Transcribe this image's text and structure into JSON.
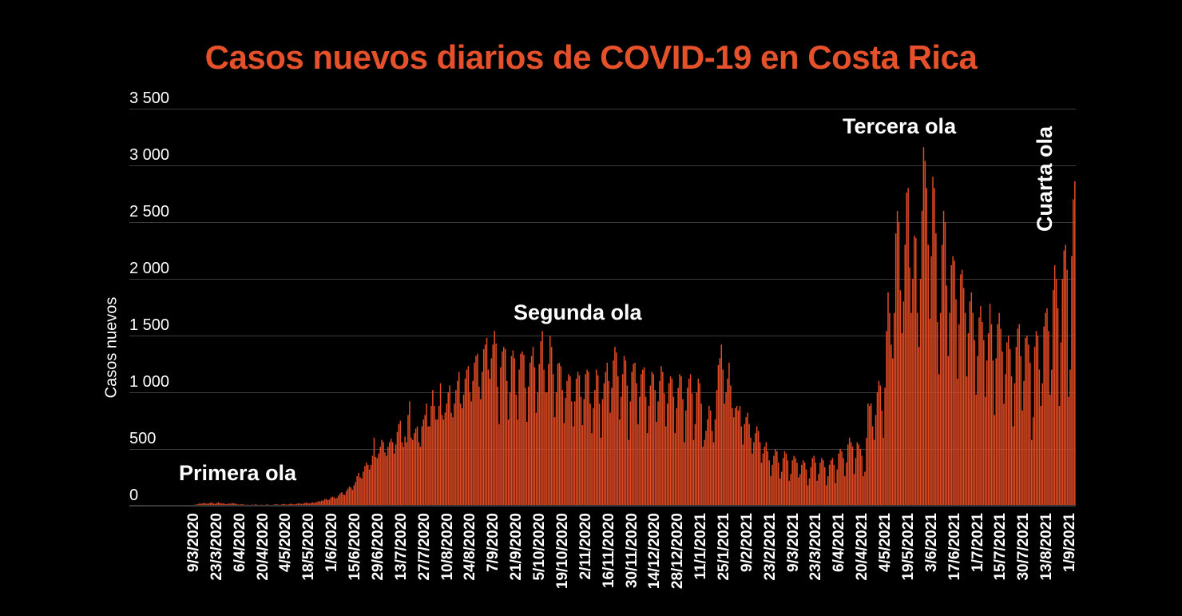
{
  "chart_data": {
    "type": "bar",
    "title": "Casos nuevos diarios de COVID-19 en Costa Rica",
    "xlabel": "",
    "ylabel": "Casos nuevos",
    "ylim": [
      0,
      3500
    ],
    "grid": true,
    "bar_color": "#e04a24",
    "y_ticks": [
      "0",
      "500",
      "1 000",
      "1 500",
      "2 000",
      "2 500",
      "3 000",
      "3 500"
    ],
    "y_tick_values": [
      0,
      500,
      1000,
      1500,
      2000,
      2500,
      3000,
      3500
    ],
    "x_tick_labels": [
      "9/3/2020",
      "23/3/2020",
      "6/4/2020",
      "20/4/2020",
      "4/5/2020",
      "18/5/2020",
      "1/6/2020",
      "15/6/2020",
      "29/6/2020",
      "13/7/2020",
      "27/7/2020",
      "10/8/2020",
      "24/8/2020",
      "7/9/2020",
      "21/9/2020",
      "5/10/2020",
      "19/10/2020",
      "2/11/2020",
      "16/11/2020",
      "30/11/2020",
      "14/12/2020",
      "28/12/2020",
      "11/1/2021",
      "25/1/2021",
      "9/2/2021",
      "23/2/2021",
      "9/3/2021",
      "23/3/2021",
      "6/4/2021",
      "20/4/2021",
      "4/5/2021",
      "19/5/2021",
      "3/6/2021",
      "17/6/2021",
      "1/7/2021",
      "15/7/2021",
      "30/7/2021",
      "13/8/2021",
      "1/9/2021"
    ],
    "start_date": "9/3/2020",
    "annotations": [
      {
        "text": "Primera ola",
        "x": "~15/4/2020",
        "y": 250
      },
      {
        "text": "Segunda ola",
        "x": "~30/9/2020",
        "y": 1700
      },
      {
        "text": "Tercera ola",
        "x": "~10/5/2021",
        "y": 3350
      },
      {
        "text": "Cuarta ola",
        "x": "~25/8/2021",
        "y": 2500,
        "rotated": true
      }
    ],
    "weekly_series_note": "Approximate daily values read from bar heights, one value per day starting 9/3/2020",
    "values": [
      1,
      0,
      4,
      5,
      6,
      8,
      4,
      10,
      12,
      15,
      20,
      18,
      22,
      25,
      20,
      18,
      22,
      26,
      28,
      20,
      16,
      24,
      30,
      26,
      20,
      22,
      18,
      14,
      16,
      20,
      18,
      24,
      22,
      20,
      14,
      12,
      10,
      14,
      12,
      10,
      8,
      10,
      6,
      8,
      10,
      8,
      12,
      10,
      8,
      6,
      10,
      8,
      6,
      10,
      12,
      8,
      6,
      8,
      10,
      14,
      12,
      10,
      8,
      12,
      16,
      14,
      12,
      10,
      14,
      18,
      16,
      12,
      14,
      18,
      22,
      20,
      16,
      18,
      24,
      28,
      24,
      20,
      24,
      30,
      26,
      28,
      34,
      40,
      38,
      46,
      44,
      60,
      58,
      50,
      54,
      72,
      80,
      75,
      64,
      70,
      90,
      110,
      120,
      100,
      96,
      130,
      150,
      170,
      160,
      140,
      180,
      210,
      260,
      290,
      250,
      240,
      300,
      350,
      380,
      360,
      320,
      360,
      440,
      600,
      430,
      420,
      460,
      520,
      580,
      560,
      470,
      440,
      520,
      560,
      590,
      560,
      460,
      540,
      650,
      720,
      750,
      560,
      520,
      610,
      560,
      800,
      920,
      600,
      580,
      640,
      680,
      700,
      560,
      520,
      700,
      760,
      800,
      900,
      700,
      700,
      880,
      1020,
      880,
      760,
      760,
      880,
      1080,
      800,
      760,
      820,
      900,
      1000,
      1060,
      820,
      780,
      900,
      1020,
      1100,
      1180,
      900,
      860,
      980,
      1120,
      1200,
      1230,
      1000,
      920,
      1100,
      1260,
      1320,
      1340,
      1050,
      940,
      1180,
      1380,
      1420,
      1480,
      1200,
      1120,
      1300,
      1420,
      1540,
      1430,
      1050,
      720,
      1220,
      1360,
      1400,
      1380,
      1100,
      760,
      1000,
      1320,
      1370,
      1300,
      980,
      760,
      1200,
      1340,
      1360,
      1330,
      1040,
      740,
      1050,
      1260,
      1320,
      1400,
      1220,
      820,
      1000,
      1250,
      1450,
      1540,
      1200,
      1000,
      1000,
      1250,
      1500,
      1400,
      1160,
      780,
      1000,
      1250,
      1260,
      1230,
      1020,
      730,
      950,
      1100,
      1160,
      1140,
      920,
      700,
      920,
      1120,
      1180,
      1150,
      960,
      710,
      940,
      1160,
      1200,
      1180,
      900,
      640,
      860,
      1020,
      1200,
      1150,
      900,
      600,
      940,
      1080,
      1180,
      1260,
      1100,
      820,
      1040,
      1280,
      1400,
      1350,
      1140,
      760,
      960,
      1160,
      1320,
      1280,
      1060,
      580,
      920,
      1180,
      1250,
      1260,
      1080,
      720,
      960,
      1160,
      1200,
      1220,
      960,
      640,
      880,
      1060,
      1180,
      1160,
      1020,
      740,
      920,
      1100,
      1230,
      1180,
      990,
      700,
      900,
      1080,
      1140,
      1120,
      960,
      640,
      860,
      1040,
      1160,
      1140,
      940,
      560,
      840,
      1040,
      1120,
      1160,
      990,
      580,
      720,
      1000,
      1120,
      1080,
      900,
      520,
      580,
      660,
      760,
      880,
      840,
      660,
      560,
      760,
      1020,
      1240,
      1300,
      1420,
      1200,
      900,
      1000,
      1120,
      1260,
      1060,
      860,
      780,
      860,
      880,
      840,
      880,
      700,
      540,
      720,
      780,
      820,
      720,
      600,
      460,
      560,
      640,
      700,
      660,
      560,
      380,
      460,
      520,
      560,
      480,
      400,
      260,
      360,
      440,
      500,
      480,
      380,
      240,
      300,
      420,
      480,
      460,
      400,
      220,
      280,
      400,
      440,
      420,
      380,
      250,
      280,
      360,
      400,
      380,
      320,
      180,
      240,
      340,
      420,
      440,
      380,
      220,
      280,
      380,
      420,
      400,
      340,
      180,
      260,
      360,
      400,
      420,
      360,
      200,
      320,
      460,
      500,
      480,
      420,
      260,
      380,
      540,
      600,
      560,
      520,
      280,
      420,
      560,
      540,
      500,
      440,
      260,
      300,
      600,
      900,
      880,
      900,
      700,
      580,
      800,
      1000,
      1100,
      1060,
      840,
      600,
      1040,
      1540,
      1880,
      1700,
      1420,
      1300,
      1700,
      2400,
      2600,
      2500,
      1900,
      1520,
      1800,
      2300,
      2760,
      2800,
      2100,
      1700,
      2000,
      2380,
      2360,
      1700,
      1400,
      2000,
      2600,
      3160,
      3040,
      2800,
      2300,
      1650,
      2200,
      2900,
      2800,
      2400,
      1620,
      1160,
      1700,
      2300,
      2600,
      2500,
      1940,
      1320,
      1700,
      2120,
      2200,
      2160,
      1820,
      1120,
      1600,
      2040,
      2080,
      1920,
      1700,
      1140,
      1520,
      1800,
      1880,
      1700,
      1460,
      980,
      1320,
      1660,
      1760,
      1620,
      1460,
      960,
      1280,
      1520,
      1780,
      1600,
      1280,
      800,
      1300,
      1600,
      1700,
      1560,
      1360,
      900,
      1160,
      1440,
      1500,
      1380,
      1140,
      700,
      1080,
      1400,
      1560,
      1600,
      1320,
      840,
      1100,
      1480,
      1500,
      1420,
      1260,
      580,
      780,
      1400,
      1540,
      1500,
      1200,
      880,
      1080,
      1580,
      1700,
      1740,
      1540,
      980,
      1200,
      1900,
      2120,
      2000,
      1740,
      880,
      1440,
      2000,
      2250,
      2300,
      2080,
      960,
      1200,
      2200,
      2700,
      2860
    ]
  },
  "labels": {
    "title": "Casos nuevos diarios de COVID-19 en Costa Rica",
    "ylabel": "Casos nuevos",
    "annotations": {
      "primera": "Primera ola",
      "segunda": "Segunda ola",
      "tercera": "Tercera ola",
      "cuarta": "Cuarta ola"
    },
    "yticks": [
      "0",
      "500",
      "1 000",
      "1 500",
      "2 000",
      "2 500",
      "3 000",
      "3 500"
    ],
    "xticks": [
      "9/3/2020",
      "23/3/2020",
      "6/4/2020",
      "20/4/2020",
      "4/5/2020",
      "18/5/2020",
      "1/6/2020",
      "15/6/2020",
      "29/6/2020",
      "13/7/2020",
      "27/7/2020",
      "10/8/2020",
      "24/8/2020",
      "7/9/2020",
      "21/9/2020",
      "5/10/2020",
      "19/10/2020",
      "2/11/2020",
      "16/11/2020",
      "30/11/2020",
      "14/12/2020",
      "28/12/2020",
      "11/1/2021",
      "25/1/2021",
      "9/2/2021",
      "23/2/2021",
      "9/3/2021",
      "23/3/2021",
      "6/4/2021",
      "20/4/2021",
      "4/5/2021",
      "19/5/2021",
      "3/6/2021",
      "17/6/2021",
      "1/7/2021",
      "15/7/2021",
      "30/7/2021",
      "13/8/2021",
      "1/9/2021"
    ]
  }
}
